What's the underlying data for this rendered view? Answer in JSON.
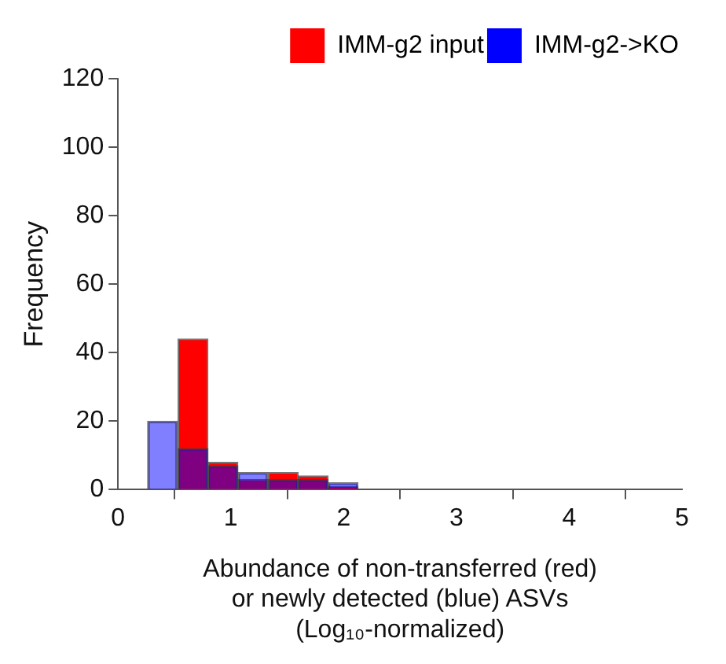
{
  "chart_data": {
    "type": "histogram",
    "xlabel": "Abundance of non-transferred (red)\nor newly detected (blue) ASVs\n(Log₁₀-normalized)",
    "ylabel": "Frequency",
    "bins": [
      0.26,
      0.53,
      0.8,
      1.06,
      1.33,
      1.6,
      1.86,
      2.13
    ],
    "series": [
      {
        "name": "IMM-g2 input",
        "color": "#ff0000",
        "values": [
          0,
          44,
          8,
          3,
          5,
          4,
          1
        ]
      },
      {
        "name": "IMM-g2->KO",
        "color": "#0000ff",
        "values": [
          20,
          12,
          7,
          5,
          3,
          3,
          2
        ]
      }
    ],
    "xlim": [
      0,
      5
    ],
    "xticks": [
      0,
      1,
      2,
      3,
      4,
      5
    ],
    "ylim": [
      0,
      120
    ],
    "yticks": [
      0,
      20,
      40,
      60,
      80,
      100,
      120
    ],
    "grid": false,
    "legend": "top right"
  }
}
